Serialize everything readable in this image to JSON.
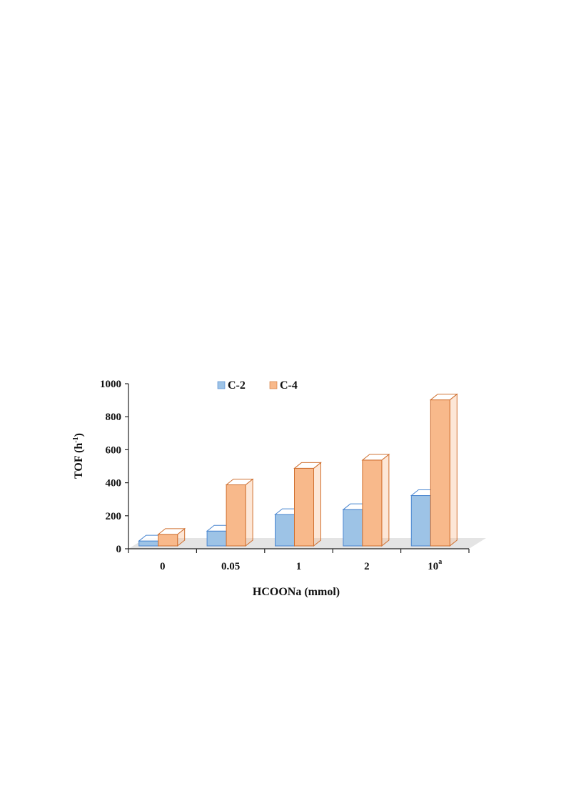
{
  "chart_data": {
    "type": "bar",
    "categories": [
      "0",
      "0.05",
      "1",
      "2",
      "10"
    ],
    "category_superscripts": [
      "",
      "",
      "",
      "",
      "a"
    ],
    "series": [
      {
        "name": "C-2",
        "values": [
          30,
          90,
          190,
          220,
          305
        ],
        "color": "#9DC3E6",
        "edge": "#4A86D0"
      },
      {
        "name": "C-4",
        "values": [
          70,
          370,
          470,
          520,
          885
        ],
        "color": "#F8B98B",
        "edge": "#D07030"
      }
    ],
    "xlabel": "HCOONa (mmol)",
    "ylabel_main": "TOF (h",
    "ylabel_sup": "-1",
    "ylabel_close": ")",
    "ylim": [
      0,
      1000
    ],
    "yticks": [
      0,
      200,
      400,
      600,
      800,
      1000
    ],
    "legend_position": "top-center",
    "style": "3d-clustered-column"
  }
}
